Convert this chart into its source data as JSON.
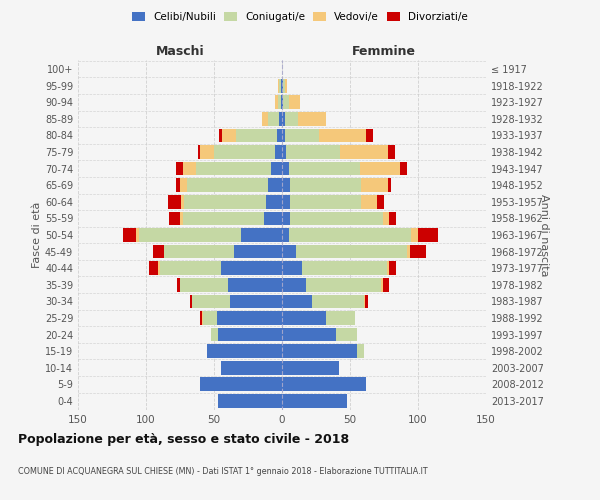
{
  "age_groups": [
    "0-4",
    "5-9",
    "10-14",
    "15-19",
    "20-24",
    "25-29",
    "30-34",
    "35-39",
    "40-44",
    "45-49",
    "50-54",
    "55-59",
    "60-64",
    "65-69",
    "70-74",
    "75-79",
    "80-84",
    "85-89",
    "90-94",
    "95-99",
    "100+"
  ],
  "birth_years": [
    "2013-2017",
    "2008-2012",
    "2003-2007",
    "1998-2002",
    "1993-1997",
    "1988-1992",
    "1983-1987",
    "1978-1982",
    "1973-1977",
    "1968-1972",
    "1963-1967",
    "1958-1962",
    "1953-1957",
    "1948-1952",
    "1943-1947",
    "1938-1942",
    "1933-1937",
    "1928-1932",
    "1923-1927",
    "1918-1922",
    "≤ 1917"
  ],
  "colors": {
    "celibe": "#4472c4",
    "coniugato": "#c5d8a4",
    "vedovo": "#f5c87a",
    "divorziato": "#cc0000"
  },
  "male": {
    "celibe": [
      47,
      60,
      45,
      55,
      47,
      48,
      38,
      40,
      45,
      35,
      30,
      13,
      12,
      10,
      8,
      5,
      4,
      2,
      1,
      1,
      0
    ],
    "coniugato": [
      0,
      0,
      0,
      0,
      5,
      10,
      28,
      35,
      45,
      52,
      75,
      60,
      60,
      60,
      55,
      45,
      30,
      8,
      2,
      1,
      0
    ],
    "vedovo": [
      0,
      0,
      0,
      0,
      0,
      1,
      0,
      0,
      1,
      0,
      2,
      2,
      2,
      5,
      10,
      10,
      10,
      5,
      2,
      1,
      0
    ],
    "divorziato": [
      0,
      0,
      0,
      0,
      0,
      1,
      2,
      2,
      7,
      8,
      10,
      8,
      10,
      3,
      5,
      2,
      2,
      0,
      0,
      0,
      0
    ]
  },
  "female": {
    "nubile": [
      48,
      62,
      42,
      55,
      40,
      32,
      22,
      18,
      15,
      10,
      5,
      6,
      6,
      6,
      5,
      3,
      2,
      2,
      1,
      1,
      0
    ],
    "coniugata": [
      0,
      0,
      0,
      5,
      15,
      22,
      38,
      55,
      62,
      82,
      90,
      68,
      52,
      52,
      52,
      40,
      25,
      10,
      4,
      1,
      0
    ],
    "vedova": [
      0,
      0,
      0,
      0,
      0,
      0,
      1,
      1,
      2,
      2,
      5,
      5,
      12,
      20,
      30,
      35,
      35,
      20,
      8,
      2,
      0
    ],
    "divorziata": [
      0,
      0,
      0,
      0,
      0,
      0,
      2,
      5,
      5,
      12,
      15,
      5,
      5,
      2,
      5,
      5,
      5,
      0,
      0,
      0,
      0
    ]
  },
  "title": "Popolazione per età, sesso e stato civile - 2018",
  "subtitle": "COMUNE DI ACQUANEGRA SUL CHIESE (MN) - Dati ISTAT 1° gennaio 2018 - Elaborazione TUTTITALIA.IT",
  "xlabel_left": "Maschi",
  "xlabel_right": "Femmine",
  "ylabel_left": "Fasce di età",
  "ylabel_right": "Anni di nascita",
  "xlim": 150,
  "background_color": "#f5f5f5",
  "grid_color": "#cccccc"
}
